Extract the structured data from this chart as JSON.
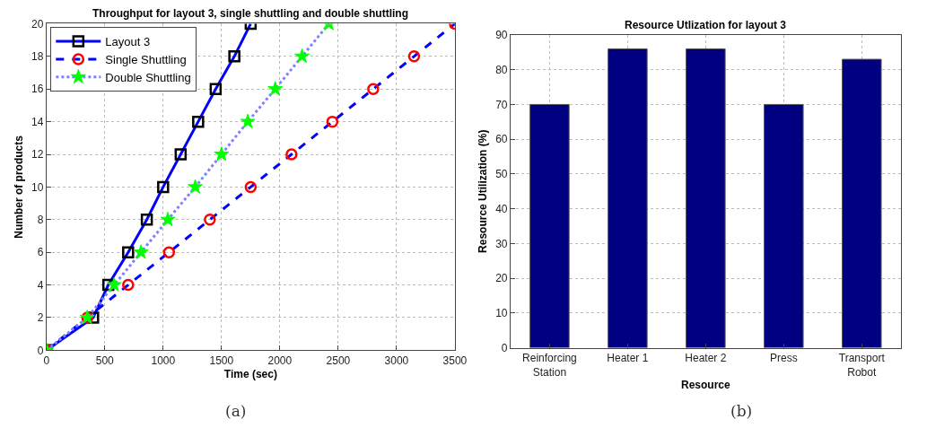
{
  "chart_data": [
    {
      "type": "line",
      "title": "Throughput for layout 3, single shuttling and double shuttling",
      "xlabel": "Time (sec)",
      "ylabel": "Number of products",
      "xlim": [
        0,
        3500
      ],
      "xticks": [
        0,
        500,
        1000,
        1500,
        2000,
        2500,
        3000,
        3500
      ],
      "ylim": [
        0,
        20
      ],
      "yticks": [
        0,
        2,
        4,
        6,
        8,
        10,
        12,
        14,
        16,
        18,
        20
      ],
      "grid": true,
      "legend": "top left",
      "series": [
        {
          "name": "Layout 3",
          "color": "#0000ff",
          "marker": "square",
          "colors": [
            "#000000",
            "#000000",
            "#000000",
            "#000000",
            "#000000",
            "#000000",
            "#000000",
            "#000000",
            "#000000",
            "#000000",
            "#000000"
          ],
          "line_style": "solid",
          "x": [
            0,
            400,
            530,
            700,
            860,
            1000,
            1150,
            1300,
            1450,
            1610,
            1750
          ],
          "values": [
            0,
            2,
            4,
            6,
            8,
            10,
            12,
            14,
            16,
            18,
            20
          ]
        },
        {
          "name": "Single Shuttling",
          "color": "#0000ff",
          "marker": "circle",
          "colors": [
            "#ff0000",
            "#ff0000",
            "#ff0000",
            "#ff0000",
            "#ff0000",
            "#ff0000",
            "#ff0000",
            "#ff0000",
            "#ff0000",
            "#ff0000",
            "#ff0000"
          ],
          "line_style": "dashed",
          "x": [
            0,
            350,
            700,
            1050,
            1400,
            1750,
            2100,
            2450,
            2800,
            3150,
            3500
          ],
          "values": [
            0,
            2,
            4,
            6,
            8,
            10,
            12,
            14,
            16,
            18,
            20
          ]
        },
        {
          "name": "Double Shuttling",
          "color": "#8080ff",
          "marker": "star",
          "colors": [
            "#00ff00",
            "#00ff00",
            "#00ff00",
            "#00ff00",
            "#00ff00",
            "#00ff00",
            "#00ff00",
            "#00ff00",
            "#00ff00",
            "#00ff00",
            "#00ff00"
          ],
          "line_style": "dotted",
          "x": [
            0,
            350,
            580,
            810,
            1040,
            1275,
            1500,
            1725,
            1960,
            2190,
            2420
          ],
          "values": [
            0,
            2,
            4,
            6,
            8,
            10,
            12,
            14,
            16,
            18,
            20
          ]
        }
      ],
      "annotations": [
        "(a)"
      ]
    },
    {
      "type": "bar",
      "title": "Resource Utlization for layout 3",
      "xlabel": "Resource",
      "ylabel": "Resource Utilization (%)",
      "categories": [
        "Reinforcing Station",
        "Heater 1",
        "Heater 2",
        "Press",
        "Transport Robot"
      ],
      "values": [
        70,
        86,
        86,
        70,
        83
      ],
      "color": "#000080",
      "ylim": [
        0,
        90
      ],
      "yticks": [
        0,
        10,
        20,
        30,
        40,
        50,
        60,
        70,
        80,
        90
      ],
      "grid": true,
      "annotations": [
        "(b)"
      ]
    }
  ]
}
